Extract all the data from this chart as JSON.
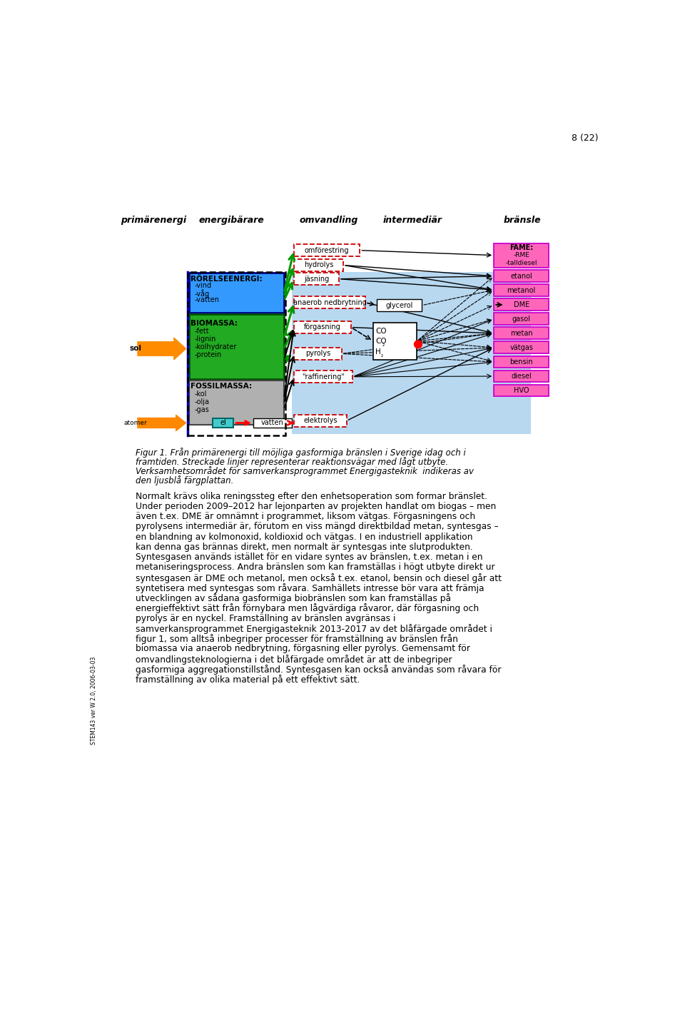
{
  "page_number": "8 (22)",
  "header_labels": [
    "primärenergi",
    "energibärare",
    "omvandling",
    "intermediär",
    "bränsle"
  ],
  "figure_caption": "Figur 1. Från primärenergi till möjliga gasformiga bränslen i Sverige idag och i\nframtiden. Streckade linjer representerar reaktionsvägar med lågt utbyte.\nVerksamhetsområdet för samverkansprogrammet Energigasteknik  indikeras av\nden ljusblå färgplattan.",
  "body_text_lines": [
    "Normalt krävs olika reningssteg efter den enhetsoperation som formar bränslet.",
    "Under perioden 2009–2012 har lejonparten av projekten handlat om biogas – men",
    "även t.ex. DME är omnämnt i programmet, liksom vätgas. Förgasningens och",
    "pyrolysens intermediär är, förutom en viss mängd direktbildad metan, syntesgas –",
    "en blandning av kolmonoxid, koldioxid och vätgas. I en industriell applikation",
    "kan denna gas brännas direkt, men normalt är syntesgas inte slutprodukten.",
    "Syntesgasen används istället för en vidare syntes av bränslen, t.ex. metan i en",
    "metaniseringsprocess. Andra bränslen som kan framställas i högt utbyte direkt ur",
    "syntesgasen är DME och metanol, men också t.ex. etanol, bensin och diesel går att",
    "syntetisera med syntesgas som råvara. Samhällets intresse bör vara att främja",
    "utvecklingen av sådana gasformiga biobränslen som kan framställas på",
    "energieffektivt sätt från förnybara men lågvärdiga råvaror, där förgasning och",
    "pyrolys är en nyckel. Framställning av bränslen avgränsas i",
    "samverkansprogrammet Energigasteknik 2013-2017 av det blåfärgade området i",
    "figur 1, som alltså inbegriper processer för framställning av bränslen från",
    "biomassa via anaerob nedbrytning, förgasning eller pyrolys. Gemensamt för",
    "omvandlingsteknologierna i det blåfärgade området är att de inbegriper",
    "gasformiga aggregationstillstånd. Syntesgasen kan också användas som råvara för",
    "framställning av olika material på ett effektivt sätt."
  ],
  "sidebar_text": "STEM143 ver W 2.0, 2006-03-03",
  "bg_color": "#ffffff"
}
